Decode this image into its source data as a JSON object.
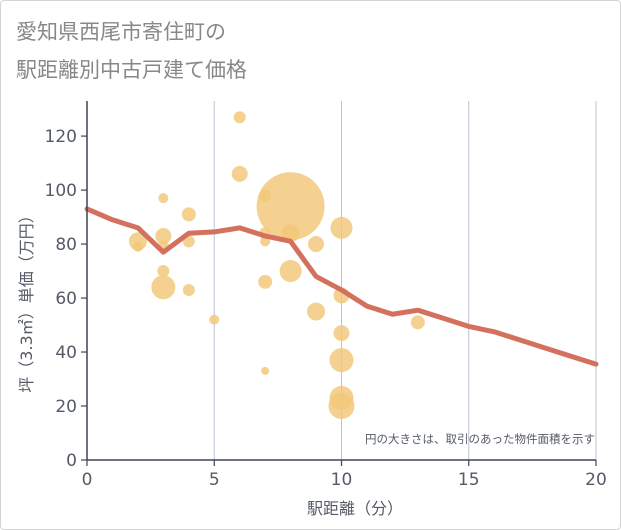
{
  "chart_data": {
    "type": "scatter",
    "title_lines": [
      "愛知県西尾市寄住町の",
      "駅距離別中古戸建て価格"
    ],
    "xlabel": "駅距離（分）",
    "ylabel": "坪（3.3㎡）単価（万円）",
    "xlim": [
      0,
      20
    ],
    "ylim": [
      0,
      133
    ],
    "xticks": [
      0,
      5,
      10,
      15,
      20
    ],
    "yticks": [
      0,
      20,
      40,
      60,
      80,
      100,
      120
    ],
    "grid": "vertical",
    "note": "円の大きさは、取引のあった物件面積を示す",
    "colors": {
      "bubble": "#f2c779",
      "line": "#d4705e",
      "grid": "#b8c4d6",
      "axis": "#3d4454"
    },
    "bubbles": [
      {
        "x": 2,
        "y": 81,
        "size": 9
      },
      {
        "x": 2,
        "y": 79,
        "size": 5
      },
      {
        "x": 3,
        "y": 97,
        "size": 5
      },
      {
        "x": 3,
        "y": 83,
        "size": 8
      },
      {
        "x": 3,
        "y": 79,
        "size": 6
      },
      {
        "x": 3,
        "y": 70,
        "size": 6
      },
      {
        "x": 3,
        "y": 64,
        "size": 12
      },
      {
        "x": 4,
        "y": 91,
        "size": 7
      },
      {
        "x": 4,
        "y": 81,
        "size": 6
      },
      {
        "x": 4,
        "y": 63,
        "size": 6
      },
      {
        "x": 5,
        "y": 52,
        "size": 5
      },
      {
        "x": 6,
        "y": 127,
        "size": 6
      },
      {
        "x": 6,
        "y": 106,
        "size": 8
      },
      {
        "x": 7,
        "y": 98,
        "size": 6
      },
      {
        "x": 7,
        "y": 84,
        "size": 6
      },
      {
        "x": 7,
        "y": 81,
        "size": 5
      },
      {
        "x": 7,
        "y": 66,
        "size": 7
      },
      {
        "x": 7,
        "y": 33,
        "size": 4
      },
      {
        "x": 8,
        "y": 94,
        "size": 34
      },
      {
        "x": 8,
        "y": 84,
        "size": 9
      },
      {
        "x": 8,
        "y": 70,
        "size": 11
      },
      {
        "x": 9,
        "y": 80,
        "size": 8
      },
      {
        "x": 9,
        "y": 55,
        "size": 9
      },
      {
        "x": 10,
        "y": 86,
        "size": 11
      },
      {
        "x": 10,
        "y": 61,
        "size": 8
      },
      {
        "x": 10,
        "y": 47,
        "size": 8
      },
      {
        "x": 10,
        "y": 37,
        "size": 12
      },
      {
        "x": 10,
        "y": 23,
        "size": 12
      },
      {
        "x": 10,
        "y": 20,
        "size": 13
      },
      {
        "x": 13,
        "y": 51,
        "size": 7
      }
    ],
    "trend_line": {
      "x": [
        0,
        1,
        2,
        3,
        4,
        5,
        6,
        7,
        8,
        9,
        10,
        11,
        12,
        13,
        14,
        15,
        16,
        17,
        18,
        19,
        20
      ],
      "y": [
        93,
        89,
        86,
        77,
        84,
        84.5,
        86,
        83,
        81,
        68,
        63,
        57,
        54,
        55.5,
        52.5,
        49.5,
        47.5,
        44.5,
        41.5,
        38.5,
        35.5
      ]
    }
  }
}
